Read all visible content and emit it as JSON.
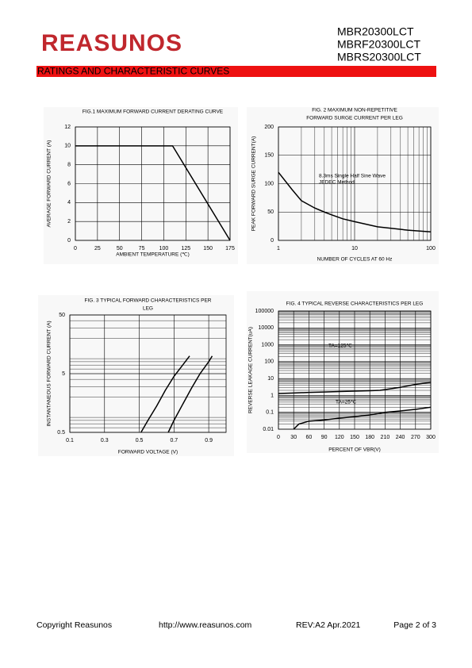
{
  "header": {
    "logo": "REASUNOS",
    "part_numbers": [
      "MBR20300LCT",
      "MBRF20300LCT",
      "MBRS20300LCT"
    ],
    "section": "RATINGS AND CHARACTERISTIC CURVES"
  },
  "chart_data": [
    {
      "type": "line",
      "title": [
        "FIG.1 MAXIMUM FORWARD CURRENT DERATING CURVE"
      ],
      "x_label": "AMBIENT TEMPERATURE (℃)",
      "y_label": "AVERAGE FORWARD CURRENT (A)",
      "xlim": [
        0,
        175
      ],
      "xticks": [
        0,
        25,
        50,
        75,
        100,
        125,
        150,
        175
      ],
      "ylim": [
        0,
        12
      ],
      "yticks": [
        0,
        2,
        4,
        6,
        8,
        10,
        12
      ],
      "grid": true,
      "series": [
        {
          "color": "#000000",
          "x": [
            0,
            110,
            175
          ],
          "values": [
            10,
            10,
            0
          ]
        }
      ]
    },
    {
      "type": "line",
      "title": [
        "FIG. 2 MAXIMUM NON-REPETITIVE",
        "FORWARD SURGE CURRENT PER LEG"
      ],
      "x_label": "NUMBER OF CYCLES AT 60 Hz",
      "y_label": "PEAK FORWARD SURGE CURRENT(A)",
      "xscale": "log",
      "xlim": [
        1,
        100
      ],
      "xticks": [
        1,
        10,
        100
      ],
      "ylim": [
        0,
        200
      ],
      "yticks": [
        0,
        50,
        100,
        150,
        200
      ],
      "grid": true,
      "annotations": [
        "8.3ms Single Half Sine Wave",
        "JEDEC Method"
      ],
      "series": [
        {
          "color": "#000000",
          "x": [
            1,
            1.5,
            2,
            3,
            4,
            5,
            7,
            10,
            20,
            50,
            100
          ],
          "values": [
            120,
            90,
            70,
            57,
            50,
            45,
            38,
            33,
            24,
            18,
            15
          ]
        }
      ]
    },
    {
      "type": "line",
      "title": [
        "FIG. 3 TYPICAL FORWARD CHARACTERISTICS PER",
        "LEG"
      ],
      "x_label": "FORWARD VOLTAGE (V)",
      "y_label": "INSTANTANEOUS FORWARD CURRENT (A)",
      "xlim": [
        0.1,
        1.0
      ],
      "xticks": [
        0.1,
        0.3,
        0.5,
        0.7,
        0.9
      ],
      "yscale": "log",
      "ylim": [
        0.5,
        50
      ],
      "yticks": [
        0.5,
        5,
        50
      ],
      "grid": true,
      "series": [
        {
          "color": "#000000",
          "x": [
            0.51,
            0.55,
            0.6,
            0.65,
            0.7,
            0.75,
            0.79
          ],
          "values": [
            0.5,
            0.8,
            1.4,
            2.6,
            4.5,
            7,
            10
          ]
        },
        {
          "color": "#000000",
          "x": [
            0.667,
            0.7,
            0.75,
            0.8,
            0.85,
            0.9,
            0.92
          ],
          "values": [
            0.5,
            0.8,
            1.5,
            2.8,
            5,
            8,
            10
          ]
        }
      ]
    },
    {
      "type": "line",
      "title": [
        "FIG. 4 TYPICAL REVERSE CHARACTERISTICS PER LEG"
      ],
      "x_label": "PERCENT OF VBR(V)",
      "y_label": "REVERSE LEAKAGE CURRENT(uA)",
      "xlim": [
        0,
        300
      ],
      "xticks": [
        0,
        30,
        60,
        90,
        120,
        150,
        180,
        210,
        240,
        270,
        300
      ],
      "yscale": "log",
      "ylim": [
        0.01,
        100000
      ],
      "yticks": [
        0.01,
        0.1,
        1,
        10,
        100,
        1000,
        10000,
        100000
      ],
      "grid": true,
      "series": [
        {
          "name": "TA=125℃",
          "color": "#000000",
          "x": [
            0,
            30,
            60,
            90,
            120,
            150,
            180,
            200,
            240,
            270,
            300
          ],
          "values": [
            1.3,
            1.4,
            1.5,
            1.6,
            1.7,
            1.8,
            1.9,
            2,
            3,
            4.5,
            6
          ]
        },
        {
          "name": "TA=25℃",
          "color": "#000000",
          "x": [
            30,
            40,
            60,
            90,
            120,
            150,
            180,
            210,
            240,
            270,
            300
          ],
          "values": [
            0.01,
            0.02,
            0.03,
            0.035,
            0.045,
            0.055,
            0.07,
            0.1,
            0.12,
            0.15,
            0.2
          ]
        }
      ]
    }
  ],
  "footer": {
    "copyright": "Copyright Reasunos",
    "url": "http://www.reasunos.com",
    "rev": "REV:A2 Apr.2021",
    "page": "Page 2 of 3"
  }
}
